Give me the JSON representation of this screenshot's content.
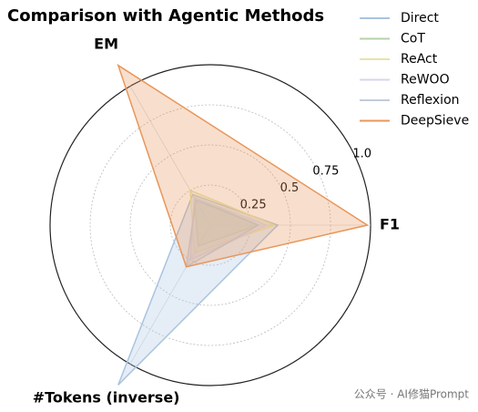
{
  "chart_data": {
    "type": "radar",
    "title": "Comparison with Agentic Methods",
    "categories": [
      "F1",
      "EM",
      "#Tokens (inverse)"
    ],
    "rlim": [
      0,
      1
    ],
    "rticks": [
      0.25,
      0.5,
      0.75,
      {
        "value": 1,
        "label": "1.0"
      }
    ],
    "legend": "upper right",
    "series": [
      {
        "name": "Direct",
        "color": "#a9c4e0",
        "values": [
          0.42,
          0.22,
          1.15
        ]
      },
      {
        "name": "CoT",
        "color": "#b5d3a8",
        "values": [
          0.3,
          0.2,
          0.15
        ]
      },
      {
        "name": "ReAct",
        "color": "#e8e3a8",
        "values": [
          0.4,
          0.25,
          0.2
        ]
      },
      {
        "name": "ReWOO",
        "color": "#d8d4ec",
        "values": [
          0.35,
          0.2,
          0.25
        ]
      },
      {
        "name": "Reflexion",
        "color": "#c3cbd9",
        "values": [
          0.3,
          0.18,
          0.3
        ]
      },
      {
        "name": "DeepSieve",
        "color": "#e8965a",
        "values": [
          0.98,
          1.15,
          0.3
        ]
      }
    ]
  },
  "watermark": "公众号 · AI修猫Prompt"
}
